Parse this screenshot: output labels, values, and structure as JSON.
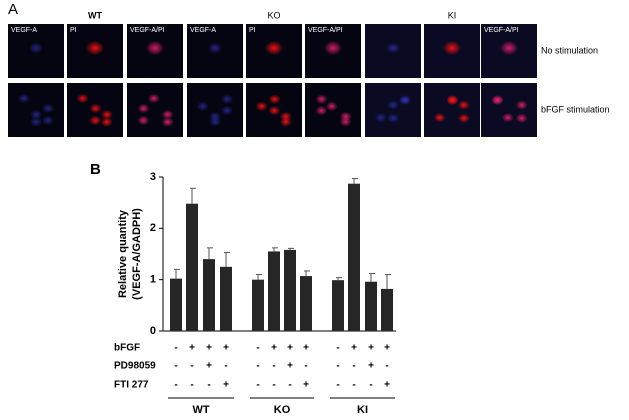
{
  "panel_a": {
    "label": "A",
    "groups": [
      {
        "title": "WT",
        "channels": [
          "VEGF-A",
          "PI",
          "VEGF-A/PI"
        ]
      },
      {
        "title": "KO",
        "channels": [
          "VEGF-A",
          "PI",
          "VEGF-A/PI"
        ]
      },
      {
        "title": "KI",
        "channels": [
          null,
          null,
          "VEGF-A/PI"
        ]
      }
    ],
    "rows": [
      "No stimulation",
      "bFGF stimulation"
    ]
  },
  "chart_data": {
    "type": "bar",
    "panel_label": "B",
    "ylabel": [
      "Relative quantity",
      "(VEGF-A/GADPH)"
    ],
    "categories": [
      null,
      null,
      null,
      null,
      null,
      null,
      null,
      null,
      null,
      null,
      null,
      null
    ],
    "values": [
      1.02,
      2.48,
      1.4,
      1.25,
      1.0,
      1.55,
      1.58,
      1.07,
      0.99,
      2.87,
      0.96,
      0.82
    ],
    "errors": [
      0.18,
      0.3,
      0.22,
      0.28,
      0.1,
      0.07,
      0.03,
      0.1,
      0.05,
      0.1,
      0.16,
      0.28
    ],
    "color": "#262626",
    "ylim": [
      0,
      3
    ],
    "yticks": [
      0,
      1,
      2,
      3
    ],
    "groups": [
      "WT",
      "KO",
      "KI"
    ],
    "conditions": [
      {
        "name": "bFGF",
        "signs": [
          "-",
          "+",
          "+",
          "+",
          "-",
          "+",
          "+",
          "+",
          "-",
          "+",
          "+",
          "+"
        ]
      },
      {
        "name": "PD98059",
        "signs": [
          "-",
          "-",
          "+",
          "-",
          "-",
          "-",
          "+",
          "-",
          "-",
          "-",
          "+",
          "-"
        ]
      },
      {
        "name": "FTI 277",
        "signs": [
          "-",
          "-",
          "-",
          "+",
          "-",
          "-",
          "-",
          "+",
          "-",
          "-",
          "-",
          "+"
        ]
      }
    ]
  }
}
